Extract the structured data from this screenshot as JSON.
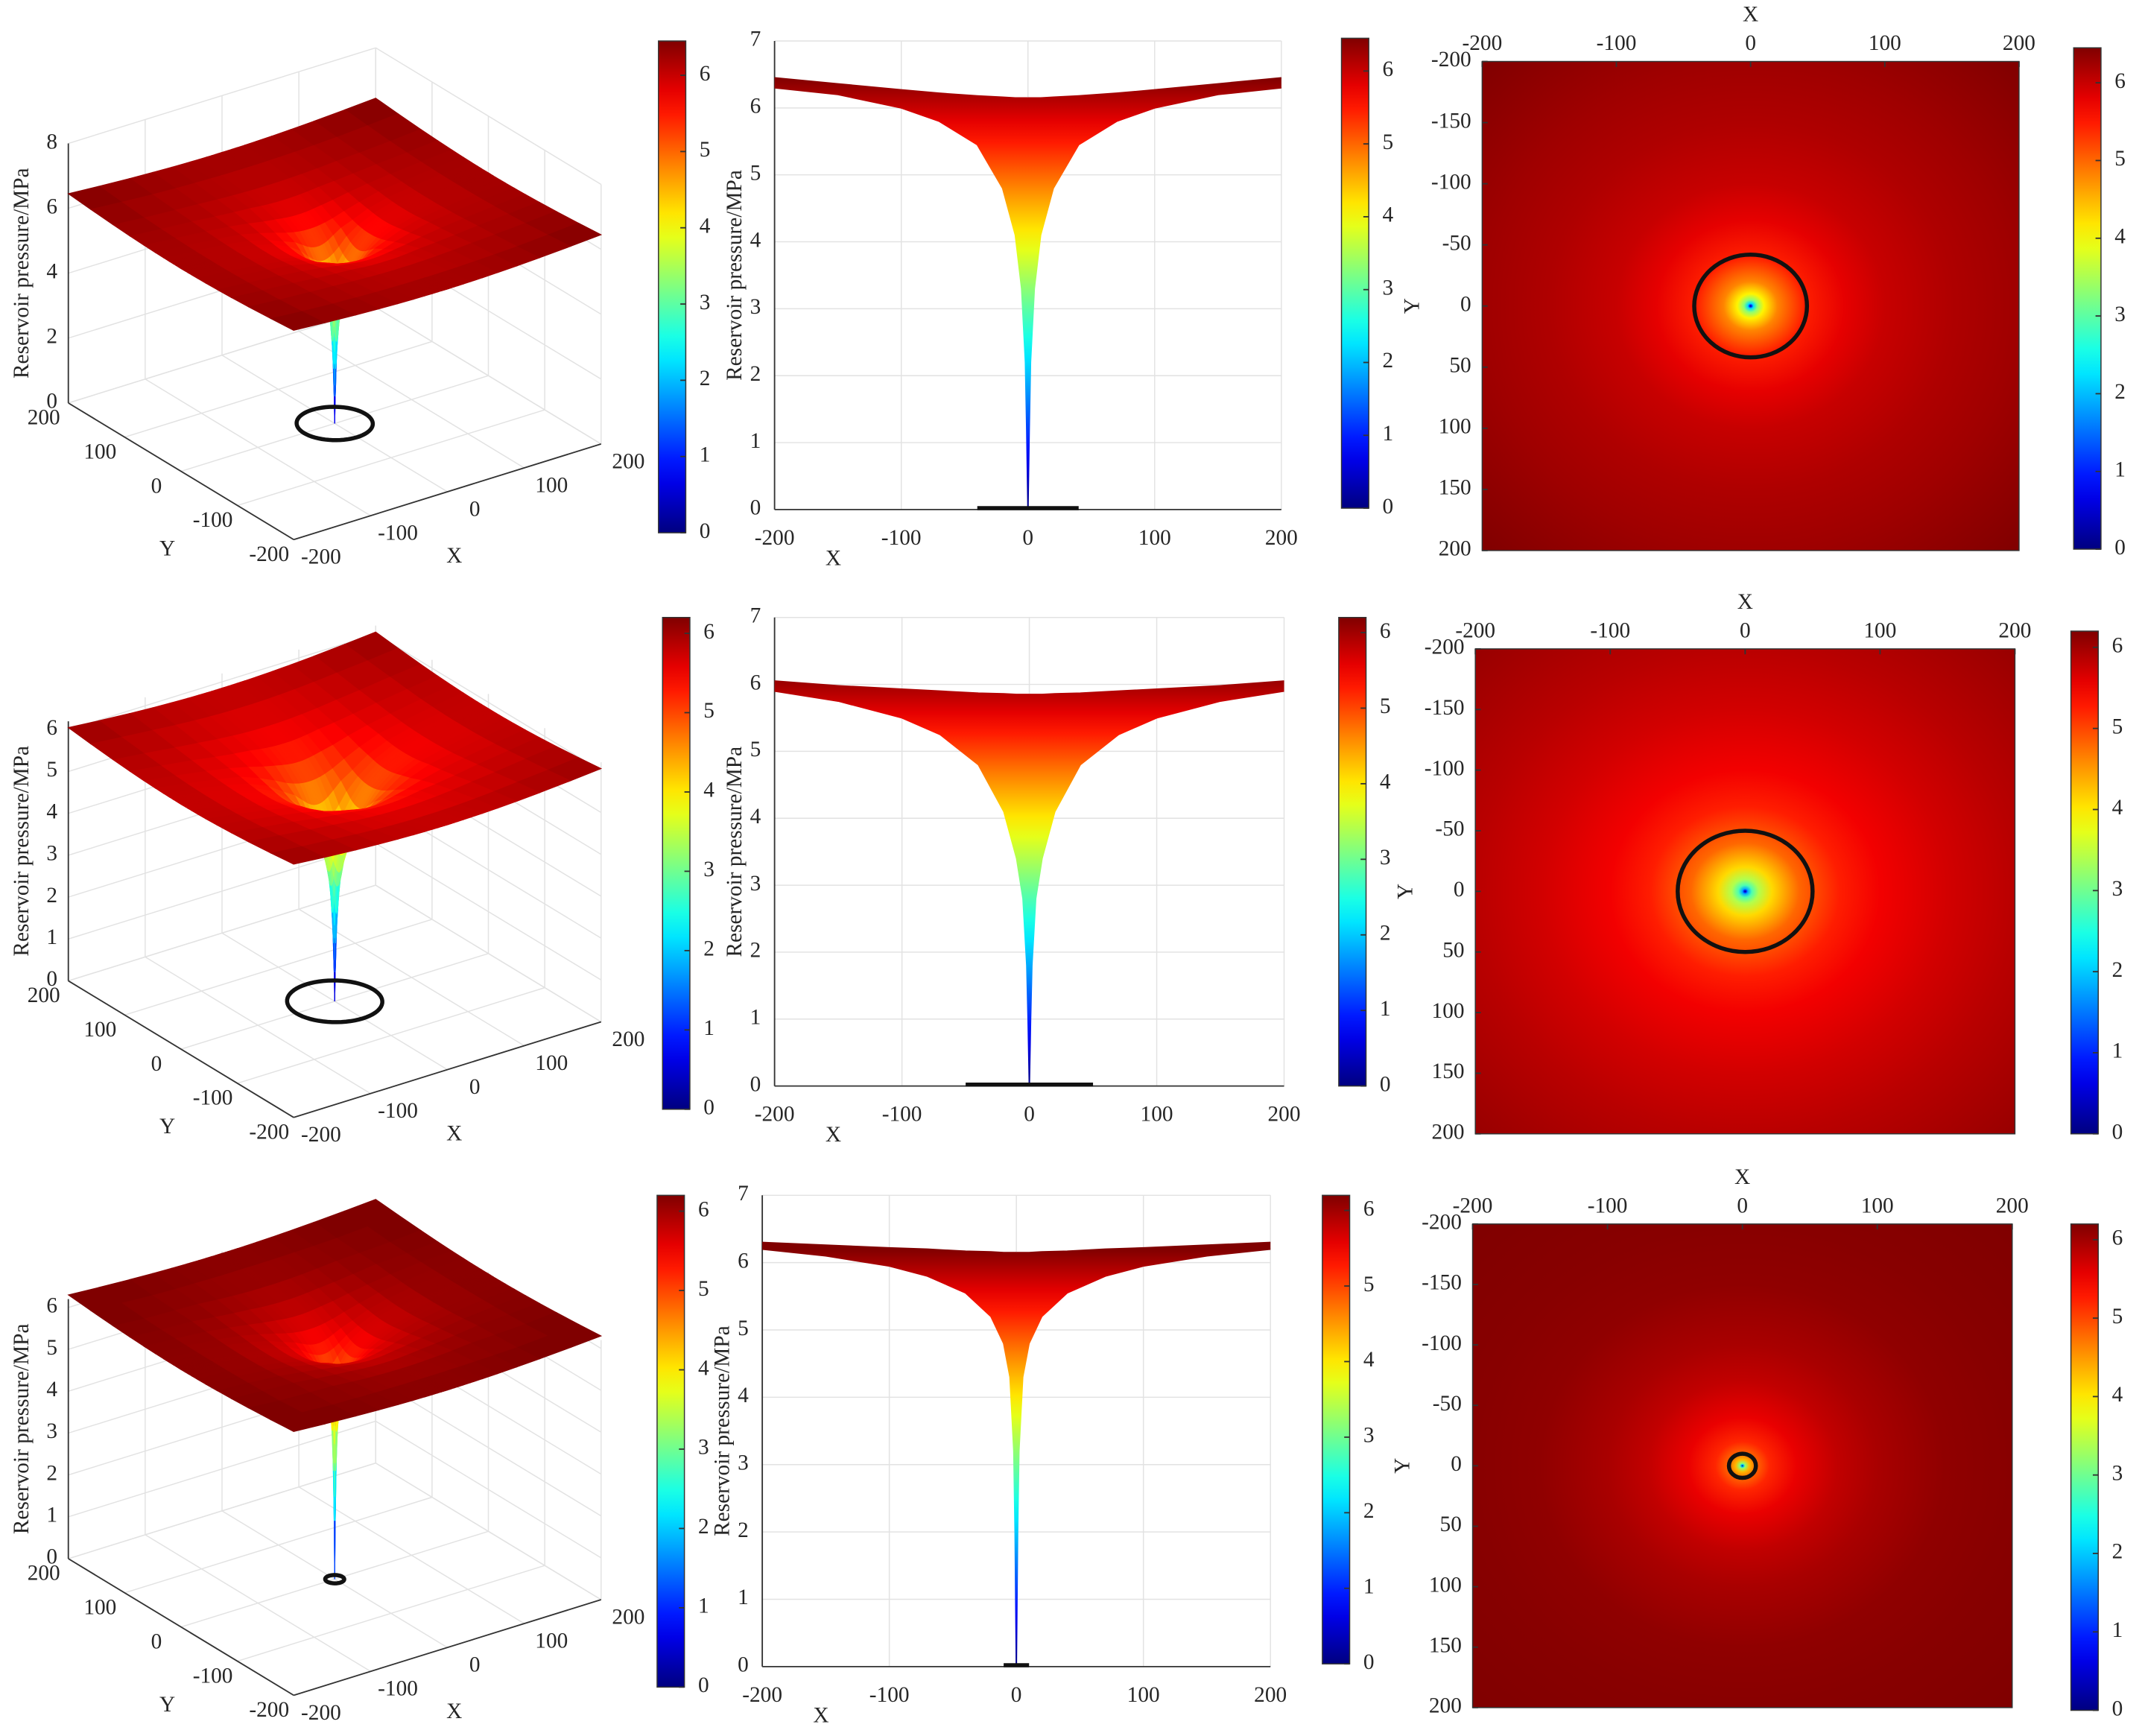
{
  "chart_data": [
    {
      "type": "surface3d",
      "xlabel": "X",
      "ylabel": "Y",
      "zlabel": "Reservoir pressure/MPa",
      "xlim": [
        -200,
        200
      ],
      "ylim": [
        -200,
        200
      ],
      "zlim": [
        0,
        8
      ],
      "xticks": [
        -200,
        -100,
        0,
        100,
        200
      ],
      "yticks": [
        -200,
        -100,
        0,
        100,
        200
      ],
      "zticks": [
        0,
        2,
        4,
        6,
        8
      ],
      "r": [
        0,
        1,
        2,
        5,
        10,
        20,
        40,
        70,
        100,
        150,
        200,
        283
      ],
      "values": [
        0,
        1.2,
        2.2,
        3.3,
        4.1,
        4.8,
        5.45,
        5.8,
        6.0,
        6.15,
        6.25,
        6.45
      ],
      "circle_radius": 40,
      "colormap": "jet",
      "clim": [
        0,
        6.45
      ],
      "cticks": [
        0,
        1,
        2,
        3,
        4,
        5,
        6
      ],
      "grid": true
    },
    {
      "type": "profile",
      "xlabel": "X",
      "ylabel": "Reservoir pressure/MPa",
      "xlim": [
        -200,
        200
      ],
      "ylim": [
        0,
        7
      ],
      "xticks": [
        -200,
        -100,
        0,
        100,
        200
      ],
      "yticks": [
        0,
        1,
        2,
        3,
        4,
        5,
        6,
        7
      ],
      "x": [
        0,
        1,
        2,
        5,
        10,
        20,
        40,
        70,
        100,
        150,
        200
      ],
      "values": [
        0,
        1.2,
        2.2,
        3.3,
        4.1,
        4.8,
        5.45,
        5.8,
        6.0,
        6.2,
        6.3
      ],
      "edge_values": [
        6.15,
        6.15,
        6.15,
        6.15,
        6.15,
        6.16,
        6.18,
        6.22,
        6.27,
        6.36,
        6.45
      ],
      "circle_radius": 40,
      "colormap": "jet",
      "clim": [
        0,
        6.45
      ],
      "cticks": [
        0,
        1,
        2,
        3,
        4,
        5,
        6
      ],
      "grid": true
    },
    {
      "type": "heatmap",
      "xlabel": "X",
      "ylabel": "Y",
      "xlim": [
        -200,
        200
      ],
      "ylim": [
        -200,
        200
      ],
      "ydir": "reverse",
      "xticks": [
        -200,
        -100,
        0,
        100,
        200
      ],
      "yticks": [
        -200,
        -150,
        -100,
        -50,
        0,
        50,
        100,
        150,
        200
      ],
      "r": [
        0,
        1,
        2,
        5,
        10,
        20,
        40,
        70,
        100,
        150,
        200,
        283
      ],
      "values": [
        0,
        1.2,
        2.2,
        3.3,
        4.1,
        4.8,
        5.45,
        5.8,
        6.0,
        6.15,
        6.25,
        6.45
      ],
      "circle_radius": 42,
      "colormap": "jet",
      "clim": [
        0,
        6.45
      ],
      "cticks": [
        0,
        1,
        2,
        3,
        4,
        5,
        6
      ]
    },
    {
      "type": "surface3d",
      "xlabel": "X",
      "ylabel": "Y",
      "zlabel": "Reservoir pressure/MPa",
      "xlim": [
        -200,
        200
      ],
      "ylim": [
        -200,
        200
      ],
      "zlim": [
        0,
        6.2
      ],
      "xticks": [
        -200,
        -100,
        0,
        100,
        200
      ],
      "yticks": [
        -200,
        -100,
        0,
        100,
        200
      ],
      "zticks": [
        0,
        1,
        2,
        3,
        4,
        5,
        6
      ],
      "r": [
        0,
        1,
        2,
        5,
        10,
        20,
        40,
        70,
        100,
        150,
        200,
        283
      ],
      "values": [
        0,
        1.0,
        1.8,
        2.8,
        3.4,
        4.1,
        4.8,
        5.25,
        5.5,
        5.7,
        5.85,
        6.05
      ],
      "circle_radius": 50,
      "colormap": "jet",
      "clim": [
        0,
        6.2
      ],
      "cticks": [
        0,
        1,
        2,
        3,
        4,
        5,
        6
      ],
      "grid": true
    },
    {
      "type": "profile",
      "xlabel": "X",
      "ylabel": "Reservoir pressure/MPa",
      "xlim": [
        -200,
        200
      ],
      "ylim": [
        0,
        7
      ],
      "xticks": [
        -200,
        -100,
        0,
        100,
        200
      ],
      "yticks": [
        0,
        1,
        2,
        3,
        4,
        5,
        6,
        7
      ],
      "x": [
        0,
        1,
        2,
        5,
        10,
        20,
        40,
        70,
        100,
        150,
        200
      ],
      "values": [
        0,
        1.0,
        1.8,
        2.8,
        3.4,
        4.1,
        4.8,
        5.25,
        5.5,
        5.75,
        5.9
      ],
      "edge_values": [
        5.85,
        5.85,
        5.85,
        5.85,
        5.85,
        5.86,
        5.87,
        5.9,
        5.93,
        5.98,
        6.05
      ],
      "circle_radius": 50,
      "colormap": "jet",
      "clim": [
        0,
        6.2
      ],
      "cticks": [
        0,
        1,
        2,
        3,
        4,
        5,
        6
      ],
      "grid": true
    },
    {
      "type": "heatmap",
      "xlabel": "X",
      "ylabel": "Y",
      "xlim": [
        -200,
        200
      ],
      "ylim": [
        -200,
        200
      ],
      "ydir": "reverse",
      "xticks": [
        -200,
        -100,
        0,
        100,
        200
      ],
      "yticks": [
        -200,
        -150,
        -100,
        -50,
        0,
        50,
        100,
        150,
        200
      ],
      "r": [
        0,
        1,
        2,
        5,
        10,
        20,
        40,
        70,
        100,
        150,
        200,
        283
      ],
      "values": [
        0,
        1.0,
        1.8,
        2.8,
        3.4,
        4.1,
        4.8,
        5.25,
        5.5,
        5.7,
        5.85,
        6.05
      ],
      "circle_radius": 50,
      "colormap": "jet",
      "clim": [
        0,
        6.2
      ],
      "cticks": [
        0,
        1,
        2,
        3,
        4,
        5,
        6
      ]
    },
    {
      "type": "surface3d",
      "xlabel": "X",
      "ylabel": "Y",
      "zlabel": "Reservoir pressure/MPa",
      "xlim": [
        -200,
        200
      ],
      "ylim": [
        -200,
        200
      ],
      "zlim": [
        0,
        6.2
      ],
      "xticks": [
        -200,
        -100,
        0,
        100,
        200
      ],
      "yticks": [
        -200,
        -100,
        0,
        100,
        200
      ],
      "zticks": [
        0,
        1,
        2,
        3,
        4,
        5,
        6
      ],
      "r": [
        0,
        1,
        2,
        5,
        10,
        20,
        40,
        70,
        100,
        150,
        200,
        283
      ],
      "values": [
        0,
        2.0,
        3.2,
        4.3,
        4.8,
        5.2,
        5.55,
        5.8,
        5.95,
        6.1,
        6.15,
        6.3
      ],
      "circle_radius": 10,
      "colormap": "jet",
      "clim": [
        0,
        6.2
      ],
      "cticks": [
        0,
        1,
        2,
        3,
        4,
        5,
        6
      ],
      "grid": true
    },
    {
      "type": "profile",
      "xlabel": "X",
      "ylabel": "Reservoir pressure/MPa",
      "xlim": [
        -200,
        200
      ],
      "ylim": [
        0,
        7
      ],
      "xticks": [
        -200,
        -100,
        0,
        100,
        200
      ],
      "yticks": [
        0,
        1,
        2,
        3,
        4,
        5,
        6,
        7
      ],
      "x": [
        0,
        1,
        2,
        5,
        10,
        20,
        40,
        70,
        100,
        150,
        200
      ],
      "values": [
        0,
        2.0,
        3.2,
        4.3,
        4.8,
        5.2,
        5.55,
        5.8,
        5.95,
        6.1,
        6.2
      ],
      "edge_values": [
        6.15,
        6.15,
        6.15,
        6.15,
        6.15,
        6.16,
        6.17,
        6.2,
        6.22,
        6.26,
        6.3
      ],
      "circle_radius": 10,
      "colormap": "jet",
      "clim": [
        0,
        6.2
      ],
      "cticks": [
        0,
        1,
        2,
        3,
        4,
        5,
        6
      ],
      "grid": true
    },
    {
      "type": "heatmap",
      "xlabel": "X",
      "ylabel": "Y",
      "xlim": [
        -200,
        200
      ],
      "ylim": [
        -200,
        200
      ],
      "ydir": "reverse",
      "xticks": [
        -200,
        -100,
        0,
        100,
        200
      ],
      "yticks": [
        -200,
        -150,
        -100,
        -50,
        0,
        50,
        100,
        150,
        200
      ],
      "r": [
        0,
        1,
        2,
        5,
        10,
        20,
        40,
        70,
        100,
        150,
        200,
        283
      ],
      "values": [
        0,
        2.0,
        3.2,
        4.3,
        4.8,
        5.2,
        5.55,
        5.8,
        5.95,
        6.1,
        6.15,
        6.3
      ],
      "circle_radius": 10,
      "colormap": "jet",
      "clim": [
        0,
        6.2
      ],
      "cticks": [
        0,
        1,
        2,
        3,
        4,
        5,
        6
      ]
    }
  ]
}
